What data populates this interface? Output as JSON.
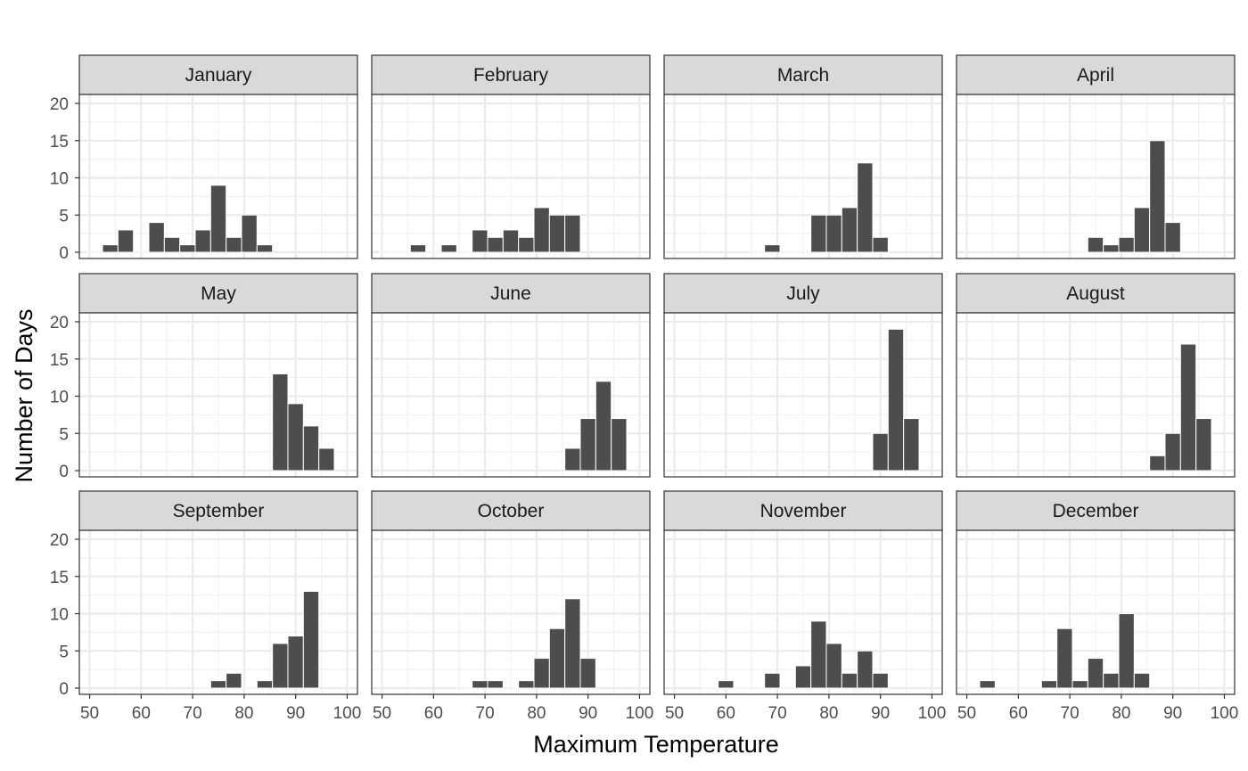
{
  "chart_data": {
    "type": "bar",
    "layout": "facet_wrap",
    "xlabel": "Maximum Temperature",
    "ylabel": "Number of Days",
    "xlim": [
      48,
      102
    ],
    "ylim": [
      0,
      20
    ],
    "x_ticks": [
      50,
      60,
      70,
      80,
      90,
      100
    ],
    "y_ticks": [
      0,
      5,
      10,
      15,
      20
    ],
    "bar_color": "#4d4d4d",
    "strip_fill": "#d9d9d9",
    "grid": true,
    "facets": [
      {
        "name": "January",
        "x": [
          51,
          54,
          57,
          60,
          63,
          66,
          69,
          72,
          75,
          78,
          81,
          84
        ],
        "values": [
          0,
          1,
          3,
          0,
          4,
          2,
          1,
          3,
          9,
          2,
          5,
          1
        ]
      },
      {
        "name": "February",
        "x": [
          51,
          54,
          57,
          60,
          63,
          66,
          69,
          72,
          75,
          78,
          81,
          84,
          87
        ],
        "values": [
          0,
          0,
          1,
          0,
          1,
          0,
          3,
          2,
          3,
          2,
          6,
          5,
          5
        ]
      },
      {
        "name": "March",
        "x": [
          66,
          69,
          72,
          75,
          78,
          81,
          84,
          87,
          90
        ],
        "values": [
          0,
          1,
          0,
          0,
          5,
          5,
          6,
          12,
          2
        ]
      },
      {
        "name": "April",
        "x": [
          72,
          75,
          78,
          81,
          84,
          87,
          90
        ],
        "values": [
          0,
          2,
          1,
          2,
          6,
          15,
          4
        ]
      },
      {
        "name": "May",
        "x": [
          87,
          90,
          93,
          96
        ],
        "values": [
          13,
          9,
          6,
          3
        ]
      },
      {
        "name": "June",
        "x": [
          87,
          90,
          93,
          96
        ],
        "values": [
          3,
          7,
          12,
          7
        ]
      },
      {
        "name": "July",
        "x": [
          90,
          93,
          96
        ],
        "values": [
          5,
          19,
          7
        ]
      },
      {
        "name": "August",
        "x": [
          87,
          90,
          93,
          96
        ],
        "values": [
          2,
          5,
          17,
          7
        ]
      },
      {
        "name": "September",
        "x": [
          72,
          75,
          78,
          81,
          84,
          87,
          90,
          93
        ],
        "values": [
          0,
          1,
          2,
          0,
          1,
          6,
          7,
          13
        ]
      },
      {
        "name": "October",
        "x": [
          66,
          69,
          72,
          75,
          78,
          81,
          84,
          87,
          90
        ],
        "values": [
          0,
          1,
          1,
          0,
          1,
          4,
          8,
          12,
          4
        ]
      },
      {
        "name": "November",
        "x": [
          57,
          60,
          63,
          66,
          69,
          72,
          75,
          78,
          81,
          84,
          87,
          90
        ],
        "values": [
          0,
          1,
          0,
          0,
          2,
          0,
          3,
          9,
          6,
          2,
          5,
          2
        ]
      },
      {
        "name": "December",
        "x": [
          51,
          54,
          57,
          60,
          63,
          66,
          69,
          72,
          75,
          78,
          81,
          84
        ],
        "values": [
          0,
          1,
          0,
          0,
          0,
          1,
          8,
          1,
          4,
          2,
          10,
          2
        ]
      }
    ]
  }
}
